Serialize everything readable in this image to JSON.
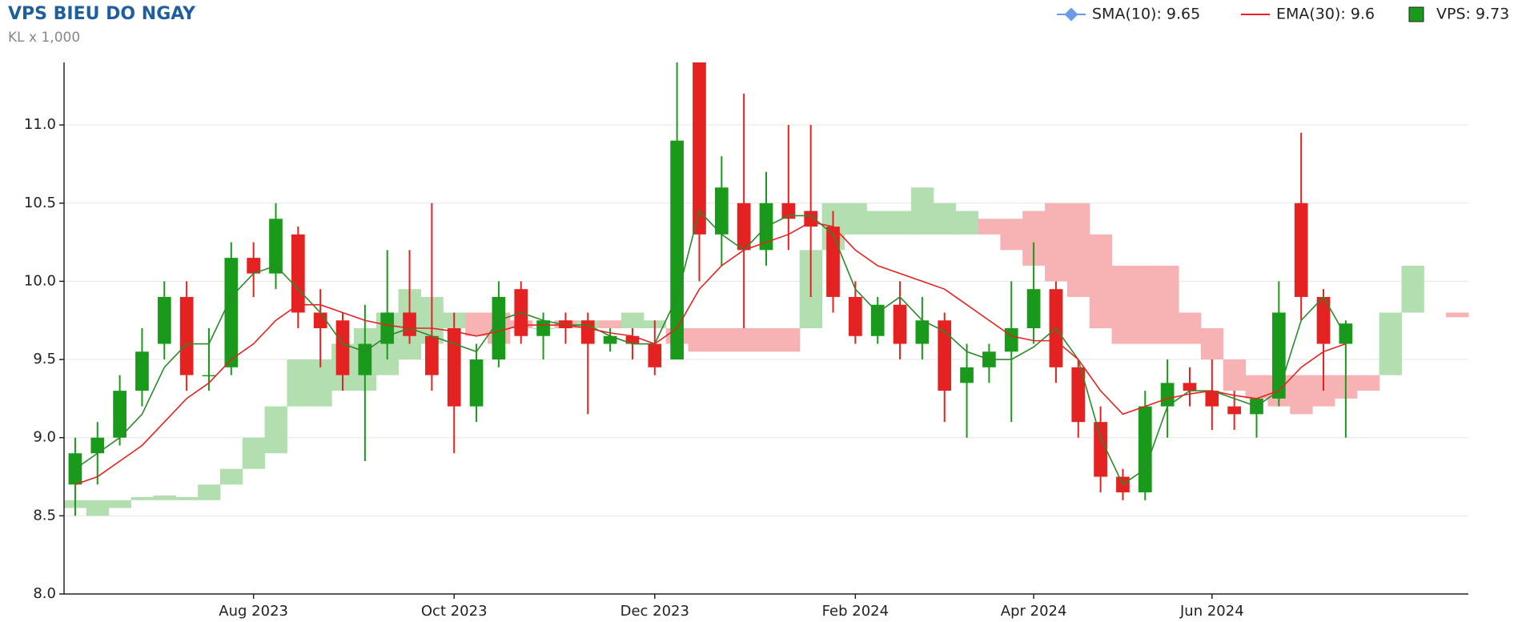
{
  "chart_data": {
    "type": "candlestick",
    "title": "VPS BIEU DO NGAY",
    "subtitle": "KL x 1,000",
    "categories": [
      null,
      null,
      null,
      null,
      null,
      null,
      null,
      null,
      "Aug 2023",
      null,
      null,
      null,
      null,
      null,
      null,
      null,
      null,
      "Oct 2023",
      null,
      null,
      null,
      null,
      null,
      null,
      null,
      null,
      "Dec 2023",
      null,
      null,
      null,
      null,
      null,
      null,
      null,
      null,
      "Feb 2024",
      null,
      null,
      null,
      null,
      null,
      null,
      null,
      "Apr 2024",
      null,
      null,
      null,
      null,
      null,
      null,
      null,
      "Jun 2024",
      null,
      null,
      null,
      null,
      null,
      null,
      null,
      null,
      null,
      null,
      null
    ],
    "ylim": [
      8.0,
      11.4
    ],
    "yticks": [
      {
        "value": 8,
        "label": "8.0"
      },
      8.5,
      {
        "value": 9,
        "label": "9.0"
      },
      9.5,
      {
        "value": 10,
        "label": "10.0"
      },
      10.5,
      {
        "value": 11,
        "label": "11.0"
      }
    ],
    "grid": true,
    "candles": {
      "name": "VPS: 9.73",
      "color": "#1a9a1a",
      "up_color": "#1a9a1a",
      "down_color": "#e52222",
      "open": [
        8.7,
        8.9,
        9.0,
        9.3,
        9.6,
        9.9,
        9.4,
        9.45,
        10.15,
        10.05,
        10.3,
        9.8,
        9.75,
        9.4,
        9.6,
        9.8,
        9.65,
        9.7,
        9.2,
        9.5,
        9.95,
        9.65,
        9.75,
        9.75,
        9.6,
        9.65,
        9.6,
        9.5,
        11.4,
        10.3,
        10.5,
        10.2,
        10.5,
        10.45,
        10.35,
        9.9,
        9.65,
        9.85,
        9.6,
        9.75,
        9.35,
        9.45,
        9.55,
        9.7,
        9.95,
        9.45,
        9.1,
        8.75,
        8.65,
        9.2,
        9.35,
        9.3,
        9.2,
        9.15,
        9.25,
        10.5,
        9.9,
        9.6
      ],
      "high": [
        9.0,
        9.1,
        9.4,
        9.7,
        10.0,
        10.0,
        9.7,
        10.25,
        10.25,
        10.5,
        10.35,
        9.95,
        9.8,
        9.85,
        10.2,
        10.2,
        10.5,
        9.8,
        9.6,
        10.0,
        10.0,
        9.8,
        9.8,
        9.8,
        9.7,
        9.7,
        9.75,
        11.4,
        11.4,
        10.8,
        11.2,
        10.7,
        11.0,
        11.0,
        10.45,
        10.0,
        9.9,
        10.0,
        9.9,
        9.8,
        9.6,
        9.6,
        10.0,
        10.25,
        10.0,
        9.5,
        9.2,
        8.8,
        9.3,
        9.5,
        9.45,
        9.5,
        9.3,
        9.25,
        10.0,
        10.95,
        9.95,
        9.75
      ],
      "low": [
        8.5,
        8.7,
        8.95,
        9.2,
        9.5,
        9.3,
        9.3,
        9.4,
        9.9,
        9.95,
        9.7,
        9.45,
        9.3,
        8.85,
        9.5,
        9.6,
        9.3,
        8.9,
        9.1,
        9.45,
        9.6,
        9.5,
        9.6,
        9.15,
        9.55,
        9.5,
        9.4,
        9.5,
        10.0,
        10.1,
        9.7,
        10.1,
        10.2,
        9.9,
        9.8,
        9.6,
        9.6,
        9.5,
        9.5,
        9.1,
        9.0,
        9.35,
        9.1,
        9.6,
        9.35,
        9.0,
        8.65,
        8.6,
        8.6,
        9.0,
        9.2,
        9.05,
        9.05,
        9.0,
        9.2,
        9.75,
        9.3,
        9.0
      ],
      "close": [
        8.9,
        9.0,
        9.3,
        9.55,
        9.9,
        9.4,
        9.4,
        10.15,
        10.05,
        10.4,
        9.8,
        9.7,
        9.4,
        9.6,
        9.8,
        9.65,
        9.4,
        9.2,
        9.5,
        9.9,
        9.65,
        9.75,
        9.7,
        9.6,
        9.65,
        9.6,
        9.45,
        10.9,
        10.3,
        10.6,
        10.2,
        10.5,
        10.4,
        10.35,
        9.9,
        9.65,
        9.85,
        9.6,
        9.75,
        9.3,
        9.45,
        9.55,
        9.7,
        9.95,
        9.45,
        9.1,
        8.75,
        8.65,
        9.2,
        9.35,
        9.3,
        9.2,
        9.15,
        9.25,
        9.8,
        9.9,
        9.6,
        9.73
      ]
    },
    "lines": [
      {
        "name": "SMA(10): 9.65",
        "color": "#2a8a2a",
        "legend_color": "#6a9be8",
        "values": [
          8.8,
          8.9,
          9.0,
          9.15,
          9.45,
          9.6,
          9.6,
          9.9,
          10.05,
          10.1,
          9.95,
          9.8,
          9.6,
          9.55,
          9.65,
          9.7,
          9.65,
          9.6,
          9.55,
          9.75,
          9.8,
          9.75,
          9.72,
          9.72,
          9.65,
          9.6,
          9.6,
          9.9,
          10.45,
          10.3,
          10.2,
          10.35,
          10.42,
          10.42,
          10.3,
          9.95,
          9.8,
          9.9,
          9.75,
          9.68,
          9.55,
          9.5,
          9.5,
          9.58,
          9.7,
          9.5,
          9.0,
          8.7,
          8.8,
          9.2,
          9.3,
          9.3,
          9.25,
          9.2,
          9.3,
          9.75,
          9.9,
          9.65
        ]
      },
      {
        "name": "EMA(30): 9.6",
        "color": "#e52222",
        "legend_color": "#e52222",
        "values": [
          8.7,
          8.75,
          8.85,
          8.95,
          9.1,
          9.25,
          9.35,
          9.5,
          9.6,
          9.75,
          9.85,
          9.85,
          9.8,
          9.75,
          9.72,
          9.7,
          9.7,
          9.68,
          9.65,
          9.68,
          9.72,
          9.72,
          9.72,
          9.7,
          9.67,
          9.65,
          9.6,
          9.7,
          9.95,
          10.1,
          10.2,
          10.25,
          10.3,
          10.38,
          10.35,
          10.2,
          10.1,
          10.05,
          10.0,
          9.95,
          9.85,
          9.75,
          9.65,
          9.62,
          9.62,
          9.5,
          9.3,
          9.15,
          9.2,
          9.25,
          9.28,
          9.3,
          9.27,
          9.25,
          9.3,
          9.45,
          9.55,
          9.6
        ]
      }
    ],
    "cloud": {
      "up_color": "#b3dfb0",
      "down_color": "#f7b3b3",
      "span_a": [
        8.6,
        8.6,
        8.6,
        8.62,
        8.63,
        8.62,
        8.7,
        8.8,
        9.0,
        9.2,
        9.5,
        9.5,
        9.6,
        9.7,
        9.8,
        9.95,
        9.9,
        9.8,
        9.65,
        9.6,
        9.7,
        9.7,
        9.7,
        9.75,
        9.7,
        9.8,
        9.75,
        9.6,
        9.55,
        9.55,
        9.55,
        9.55,
        9.55,
        10.2,
        10.5,
        10.5,
        10.45,
        10.45,
        10.6,
        10.5,
        10.45,
        10.3,
        10.2,
        10.1,
        10.0,
        9.9,
        9.7,
        9.6,
        9.6,
        9.6,
        9.6,
        9.5,
        9.3,
        9.25,
        9.2,
        9.15,
        9.2,
        9.25,
        9.3,
        9.8,
        10.1,
        null,
        9.77
      ],
      "span_b": [
        8.55,
        8.5,
        8.55,
        8.6,
        8.6,
        8.6,
        8.6,
        8.7,
        8.8,
        8.9,
        9.2,
        9.2,
        9.3,
        9.3,
        9.4,
        9.5,
        9.6,
        9.7,
        9.8,
        9.8,
        9.75,
        9.7,
        9.75,
        9.7,
        9.75,
        9.7,
        9.7,
        9.7,
        9.7,
        9.7,
        9.7,
        9.7,
        9.7,
        9.7,
        10.2,
        10.3,
        10.3,
        10.3,
        10.3,
        10.3,
        10.3,
        10.4,
        10.4,
        10.45,
        10.5,
        10.5,
        10.3,
        10.1,
        10.1,
        10.1,
        9.8,
        9.7,
        9.5,
        9.4,
        9.4,
        9.4,
        9.4,
        9.4,
        9.4,
        9.4,
        9.8,
        null,
        9.8
      ]
    }
  }
}
